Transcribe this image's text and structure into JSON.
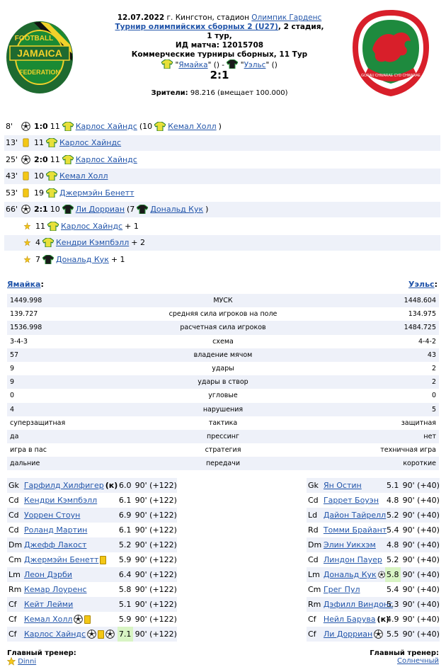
{
  "header": {
    "date": "12.07.2022",
    "location_text": "г. Кингстон, стадион",
    "stadium": "Олимпик Гарденс",
    "tournament": "Турнир олимпийских сборных 2 (U27)",
    "stage": ", 2 стадия, 1 тур,",
    "match_id": "ИД матча: 12015708",
    "commercial": "Коммерческие турниры сборных, 11 Тур",
    "home_team_quoted": "Ямайка",
    "away_team_quoted": "Уэльс",
    "home_paren": "()",
    "dash": " - ",
    "away_paren": "()",
    "score": "2:1",
    "spectators_label": "Зрители:",
    "spectators_value": "98.216 (вмещает 100.000)",
    "logo_left_text_top": "FOOTBALL",
    "logo_left_text_mid": "JAMAICA",
    "logo_left_text_bottom": "FEDERATION",
    "logo_right_text": "GORAU CHWARAE CYD CHWARAE"
  },
  "events": [
    {
      "minute": "8'",
      "icon": "ball-icon",
      "score": "1:0",
      "num": "11",
      "player": "Карлос Хайндс",
      "extra_open": "(10",
      "assist": "Кемал Холл",
      "extra_close": ")",
      "team": "home",
      "bg": "white"
    },
    {
      "minute": "13'",
      "icon": "yellow-card-icon",
      "num": "11",
      "player": "Карлос Хайндс",
      "team": "home",
      "bg": "alt"
    },
    {
      "minute": "25'",
      "icon": "ball-icon",
      "score": "2:0",
      "num": "11",
      "player": "Карлос Хайндс",
      "team": "home",
      "bg": "white"
    },
    {
      "minute": "43'",
      "icon": "yellow-card-icon",
      "num": "10",
      "player": "Кемал Холл",
      "team": "home",
      "bg": "alt"
    },
    {
      "minute": "53'",
      "icon": "yellow-card-icon",
      "num": "19",
      "player": "Джермэйн Бенетт",
      "team": "home",
      "bg": "white"
    },
    {
      "minute": "66'",
      "icon": "ball-icon",
      "score": "2:1",
      "num": "10",
      "player": "Ли Дорриан",
      "extra_open": "(7",
      "assist": "Дональд Кук",
      "extra_close": ")",
      "team": "away",
      "bg": "alt"
    },
    {
      "minute": "",
      "icon": "star-bonus-icon",
      "num": "11",
      "player": "Карлос Хайндс",
      "suffix": "+ 1",
      "team": "home",
      "bg": "white"
    },
    {
      "minute": "",
      "icon": "star-bonus-icon",
      "num": "4",
      "player": "Кендри Кэмпбэлл",
      "suffix": "+ 2",
      "team": "home",
      "bg": "alt"
    },
    {
      "minute": "",
      "icon": "star-bonus-icon",
      "num": "7",
      "player": "Дональд Кук",
      "suffix": "+ 1",
      "team": "away",
      "bg": "white"
    }
  ],
  "teams": {
    "home": "Ямайка",
    "home_colon": ":",
    "away": "Уэльс",
    "away_colon": ":"
  },
  "stats": [
    {
      "left": "1449.998",
      "label": "МУСК",
      "right": "1448.604"
    },
    {
      "left": "139.727",
      "label": "средняя сила игроков на поле",
      "right": "134.975"
    },
    {
      "left": "1536.998",
      "label": "расчетная сила игроков",
      "right": "1484.725"
    },
    {
      "left": "3-4-3",
      "label": "схема",
      "right": "4-4-2"
    },
    {
      "left": "57",
      "label": "владение мячом",
      "right": "43"
    },
    {
      "left": "9",
      "label": "удары",
      "right": "2"
    },
    {
      "left": "9",
      "label": "удары в створ",
      "right": "2"
    },
    {
      "left": "0",
      "label": "угловые",
      "right": "0"
    },
    {
      "left": "4",
      "label": "нарушения",
      "right": "5"
    },
    {
      "left": "суперзащитная",
      "label": "тактика",
      "right": "защитная"
    },
    {
      "left": "да",
      "label": "прессинг",
      "right": "нет"
    },
    {
      "left": "игра в пас",
      "label": "стратегия",
      "right": "техничная игра"
    },
    {
      "left": "дальние",
      "label": "передачи",
      "right": "короткие"
    }
  ],
  "lineup_home": [
    {
      "pos": "Gk",
      "name": "Гарфилд Хилфигер",
      "tag": "(к)",
      "rating": "6.0",
      "minutes": "90' (+122)"
    },
    {
      "pos": "Cd",
      "name": "Кендри Кэмпбэлл",
      "rating": "6.1",
      "minutes": "90' (+122)"
    },
    {
      "pos": "Cd",
      "name": "Уоррен Стоун",
      "rating": "6.9",
      "minutes": "90' (+122)"
    },
    {
      "pos": "Cd",
      "name": "Роланд Мартин",
      "rating": "6.1",
      "minutes": "90' (+122)"
    },
    {
      "pos": "Dm",
      "name": "Джефф Лакост",
      "rating": "5.2",
      "minutes": "90' (+122)"
    },
    {
      "pos": "Cm",
      "name": "Джермэйн Бенетт",
      "card": true,
      "rating": "5.9",
      "minutes": "90' (+122)"
    },
    {
      "pos": "Lm",
      "name": "Леон Дэрби",
      "rating": "6.4",
      "minutes": "90' (+122)"
    },
    {
      "pos": "Rm",
      "name": "Кемар Лоуренс",
      "rating": "5.8",
      "minutes": "90' (+122)"
    },
    {
      "pos": "Cf",
      "name": "Кейт Лейми",
      "rating": "5.1",
      "minutes": "90' (+122)"
    },
    {
      "pos": "Cf",
      "name": "Кемал Холл",
      "ball": 1,
      "card": true,
      "rating": "5.9",
      "minutes": "90' (+122)"
    },
    {
      "pos": "Cf",
      "name": "Карлос Хайндс",
      "ball": 1,
      "card": true,
      "ball2": true,
      "rating": "7.1",
      "hl": true,
      "minutes": "90' (+122)"
    }
  ],
  "lineup_away": [
    {
      "pos": "Gk",
      "name": "Ян Остин",
      "rating": "5.1",
      "minutes": "90' (+40)"
    },
    {
      "pos": "Cd",
      "name": "Гаррет Боуэн",
      "rating": "4.8",
      "minutes": "90' (+40)"
    },
    {
      "pos": "Ld",
      "name": "Дайон Тайрелл",
      "rating": "5.2",
      "minutes": "90' (+40)"
    },
    {
      "pos": "Rd",
      "name": "Томми Брайант",
      "rating": "5.4",
      "minutes": "90' (+40)"
    },
    {
      "pos": "Dm",
      "name": "Элин Уикхэм",
      "rating": "4.8",
      "minutes": "90' (+40)"
    },
    {
      "pos": "Cd",
      "name": "Линдон Пауер",
      "rating": "5.2",
      "minutes": "90' (+40)"
    },
    {
      "pos": "Lm",
      "name": "Дональд Кук",
      "ball": 1,
      "rating": "5.8",
      "hl": true,
      "minutes": "90' (+40)"
    },
    {
      "pos": "Cm",
      "name": "Грег Пул",
      "rating": "5.4",
      "minutes": "90' (+40)"
    },
    {
      "pos": "Rm",
      "name": "Дэфилл Виндонс",
      "rating": "5.3",
      "minutes": "90' (+40)"
    },
    {
      "pos": "Cf",
      "name": "Нейл Барува",
      "tag": "(к)",
      "rating": "4.9",
      "minutes": "90' (+40)"
    },
    {
      "pos": "Cf",
      "name": "Ли Дорриан",
      "ball": 1,
      "rating": "5.5",
      "minutes": "90' (+40)"
    }
  ],
  "coaches": {
    "home_title": "Главный тренер:",
    "home_name": "Dinni",
    "away_title": "Главный тренер:",
    "away_name": "Солнечный"
  },
  "colors": {
    "jamaica_shirt": "#e8e03a",
    "jamaica_trim": "#1a7a2a",
    "wales_shirt": "#1a1a1a",
    "wales_trim": "#2a9a3a",
    "row_alt": "#eef1f9",
    "rating_highlight": "#d8f4c4",
    "link": "#2255aa"
  }
}
